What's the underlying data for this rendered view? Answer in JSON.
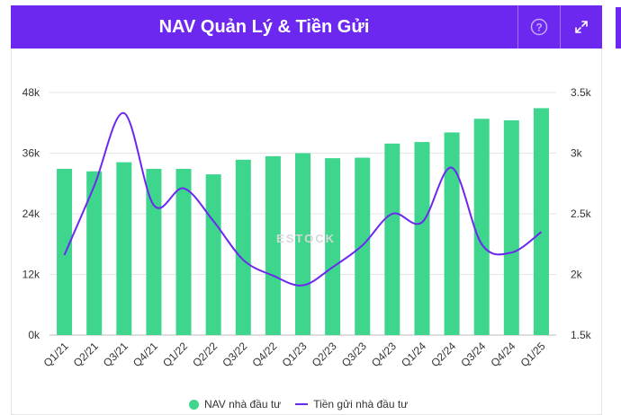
{
  "header": {
    "title": "NAV Quản Lý & Tiền Gửi"
  },
  "icons": {
    "help": "question-circle-icon",
    "expand": "expand-arrows-icon"
  },
  "watermark": "ESTOCK",
  "colors": {
    "header": "#6d28f0",
    "bars": "#3dd68c",
    "line": "#6d28f0"
  },
  "chart_data": {
    "type": "bar",
    "categories": [
      "Q1/21",
      "Q2/21",
      "Q3/21",
      "Q4/21",
      "Q1/22",
      "Q2/22",
      "Q3/22",
      "Q4/22",
      "Q1/23",
      "Q2/23",
      "Q3/23",
      "Q4/23",
      "Q1/24",
      "Q2/24",
      "Q3/24",
      "Q4/24",
      "Q1/25"
    ],
    "series": [
      {
        "name": "NAV nhà đầu tư",
        "type": "bar",
        "axis": "left",
        "values": [
          32.9,
          32.4,
          34.2,
          32.9,
          32.9,
          31.8,
          34.7,
          35.4,
          36.0,
          35.0,
          35.1,
          37.9,
          38.2,
          40.1,
          42.8,
          42.5,
          44.9
        ]
      },
      {
        "name": "Tiền gửi nhà đầu tư",
        "type": "line",
        "axis": "right",
        "values": [
          2.16,
          2.73,
          3.33,
          2.57,
          2.71,
          2.44,
          2.12,
          1.99,
          1.91,
          2.06,
          2.24,
          2.5,
          2.43,
          2.88,
          2.25,
          2.18,
          2.35
        ]
      }
    ],
    "y_left": {
      "min": 0,
      "max": 48,
      "ticks": [
        0,
        12,
        24,
        36,
        48
      ],
      "tick_labels": [
        "0k",
        "12k",
        "24k",
        "36k",
        "48k"
      ]
    },
    "y_right": {
      "min": 1.5,
      "max": 3.5,
      "ticks": [
        1.5,
        2,
        2.5,
        3,
        3.5
      ],
      "tick_labels": [
        "1.5k",
        "2k",
        "2.5k",
        "3k",
        "3.5k"
      ]
    },
    "grid": "horizontal",
    "legend_position": "bottom-center"
  }
}
